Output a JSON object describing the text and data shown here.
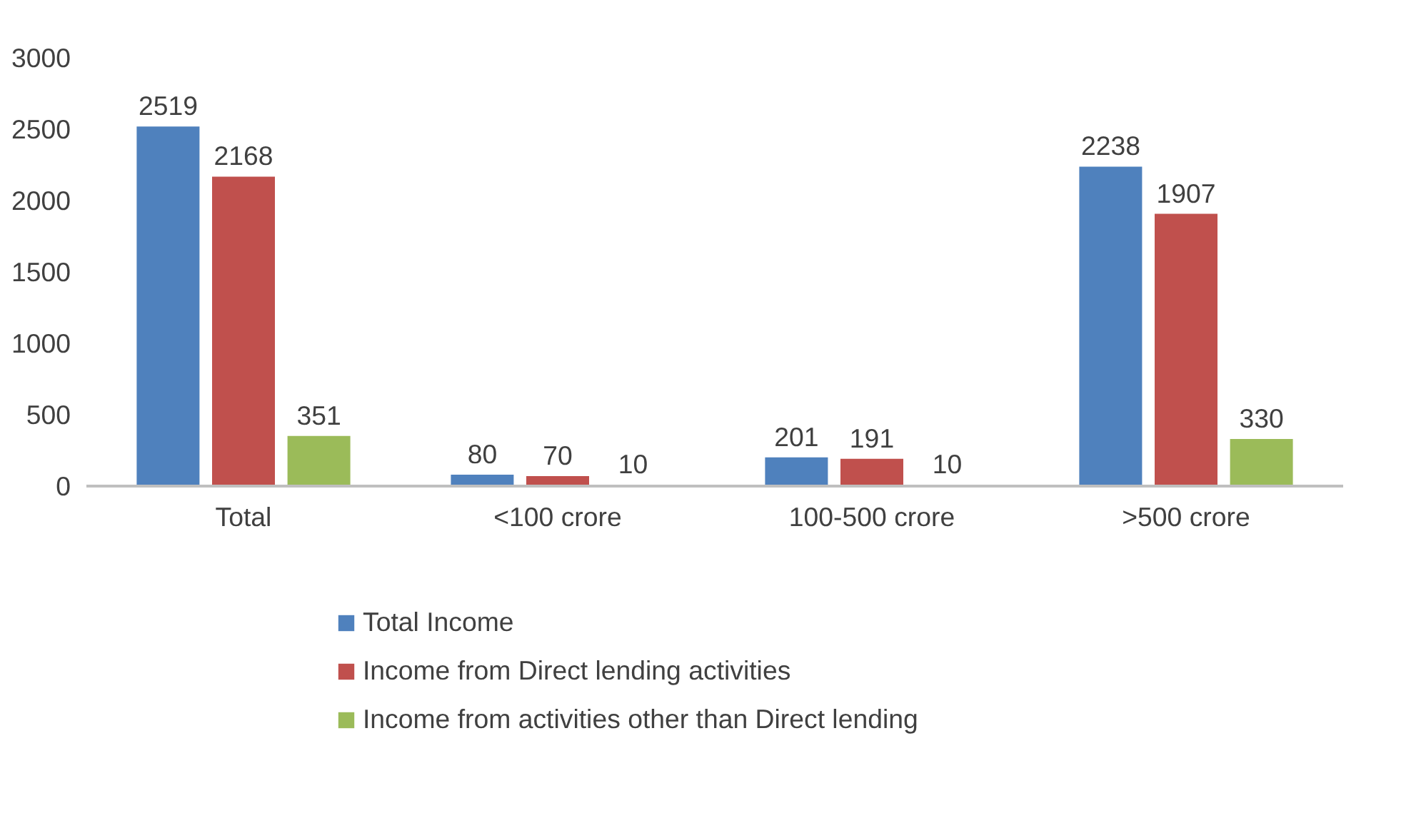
{
  "chart_data": {
    "type": "bar",
    "categories": [
      "Total",
      "<100 crore",
      "100-500 crore",
      ">500 crore"
    ],
    "series": [
      {
        "name": "Total Income",
        "color": "#4f81bd",
        "values": [
          2519,
          80,
          201,
          2238
        ]
      },
      {
        "name": "Income from Direct lending activities",
        "color": "#c0504d",
        "values": [
          2168,
          70,
          191,
          1907
        ]
      },
      {
        "name": "Income from activities other than Direct lending",
        "color": "#9bbb59",
        "values": [
          351,
          10,
          10,
          330
        ]
      }
    ],
    "ylim": [
      0,
      3000
    ],
    "yticks": [
      0,
      500,
      1000,
      1500,
      2000,
      2500,
      3000
    ],
    "grid": false,
    "legend": "bottom",
    "data_labels": true
  }
}
